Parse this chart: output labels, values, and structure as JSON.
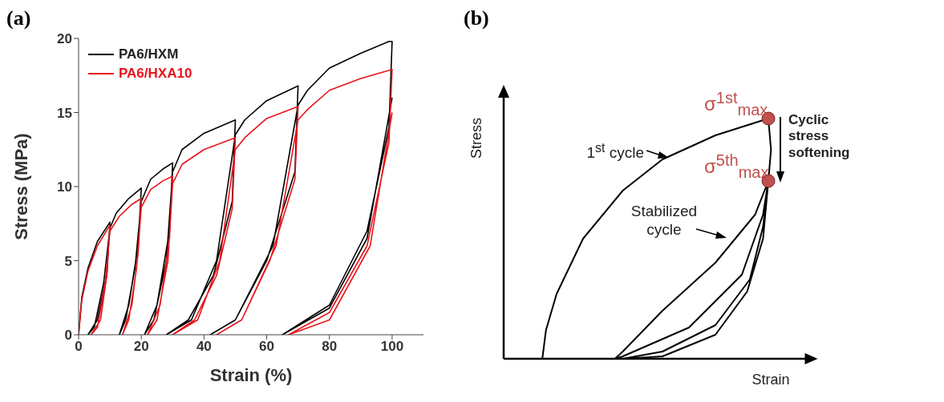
{
  "chart_data": [
    {
      "type": "line",
      "title": "(a)",
      "xlabel": "Strain (%)",
      "ylabel": "Stress (MPa)",
      "xlim": [
        0,
        110
      ],
      "xticks": [
        0,
        20,
        40,
        60,
        80,
        100
      ],
      "ylim": [
        0,
        20
      ],
      "yticks": [
        0,
        5,
        10,
        15,
        20
      ],
      "legend": "top left",
      "series": [
        {
          "name": "PA6/HXM",
          "color": "#000000",
          "x": [
            0,
            1,
            3,
            6,
            10,
            9,
            6,
            3,
            5,
            8,
            10,
            12,
            16,
            20,
            19,
            16,
            13,
            15,
            18,
            20,
            23,
            27,
            30,
            29,
            25,
            21,
            24,
            28,
            30,
            33,
            40,
            50,
            49,
            43,
            35,
            28,
            36,
            44,
            50,
            53,
            60,
            70,
            69,
            60,
            50,
            42,
            50,
            62,
            70,
            73,
            80,
            90,
            99,
            100,
            99,
            92,
            80,
            65,
            80,
            92,
            100
          ],
          "values": [
            0,
            2.5,
            4.5,
            6.3,
            7.6,
            4,
            1,
            0,
            0.5,
            3.5,
            7.2,
            8.2,
            9.2,
            9.9,
            6,
            2,
            0,
            1,
            4.5,
            9,
            10.5,
            11.2,
            11.6,
            7,
            2,
            0,
            1,
            5,
            11,
            12.5,
            13.6,
            14.5,
            9,
            4,
            1,
            0,
            1,
            5,
            13.5,
            14.5,
            15.8,
            16.8,
            11,
            5,
            1,
            0,
            1,
            6,
            15.5,
            16.5,
            18,
            19,
            19.8,
            19.8,
            14,
            7,
            2,
            0,
            1.8,
            6.5,
            16
          ]
        },
        {
          "name": "PA6/HXA10",
          "color": "#e8141b",
          "x": [
            0,
            1,
            3,
            6,
            10,
            9,
            7,
            4,
            6,
            8.5,
            10,
            13,
            17,
            20,
            19,
            17,
            14,
            16,
            18.5,
            20,
            23,
            27,
            30,
            29,
            26,
            22,
            25,
            28.5,
            30,
            33,
            40,
            50,
            49,
            44,
            37,
            30,
            38,
            45,
            50,
            53,
            60,
            70,
            69,
            61,
            52,
            44,
            52,
            63,
            70,
            73,
            80,
            90,
            100,
            99,
            92,
            80,
            67,
            80,
            93,
            100
          ],
          "values": [
            0,
            2.3,
            4.3,
            6,
            7.4,
            4,
            1,
            0,
            0.5,
            3.5,
            7,
            8,
            8.8,
            9.2,
            5.5,
            2,
            0,
            1,
            4.5,
            8.6,
            9.8,
            10.4,
            10.7,
            6.5,
            2,
            0,
            1,
            5,
            10.2,
            11.5,
            12.5,
            13.3,
            8.5,
            4,
            1,
            0,
            1,
            5,
            12.5,
            13.3,
            14.6,
            15.4,
            10.5,
            5,
            1,
            0,
            1,
            6,
            14.5,
            15.2,
            16.5,
            17.3,
            17.9,
            13,
            6,
            1.5,
            0,
            1,
            6,
            15
          ]
        }
      ]
    },
    {
      "type": "other",
      "title": "(b)",
      "xlabel": "Strain",
      "ylabel": "Stress",
      "annotations": [
        "1$^{st}$ cycle",
        "Stabilized cycle",
        "σ$^{1st}$$_{max}$",
        "σ$^{5th}$$_{max}$",
        "Cyclic stress softening"
      ]
    }
  ]
}
